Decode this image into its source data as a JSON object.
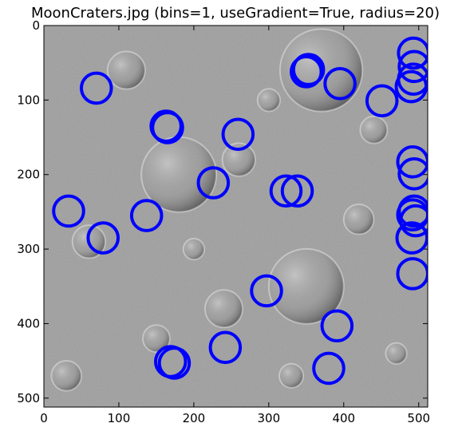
{
  "chart_data": {
    "type": "scatter",
    "title": "MoonCraters.jpg (bins=1, useGradient=True, radius=20)",
    "xlabel": "",
    "ylabel": "",
    "xlim": [
      0,
      512
    ],
    "ylim": [
      512,
      0
    ],
    "y_axis_inverted": true,
    "grid": false,
    "legend": "none",
    "background_image": "moon-surface-craters",
    "marker": "circle-outline",
    "marker_color": "#0000ff",
    "marker_radius": 20,
    "x_ticks": [
      0,
      100,
      200,
      300,
      400,
      500
    ],
    "y_ticks": [
      0,
      100,
      200,
      300,
      400,
      500
    ],
    "x_tick_labels": [
      "0",
      "100",
      "200",
      "300",
      "400",
      "500"
    ],
    "y_tick_labels": [
      "0",
      "100",
      "200",
      "300",
      "400",
      "500"
    ],
    "points": [
      {
        "x": 70,
        "y": 84
      },
      {
        "x": 163,
        "y": 135
      },
      {
        "x": 165,
        "y": 137
      },
      {
        "x": 259,
        "y": 146
      },
      {
        "x": 353,
        "y": 59
      },
      {
        "x": 350,
        "y": 62
      },
      {
        "x": 395,
        "y": 78
      },
      {
        "x": 451,
        "y": 101
      },
      {
        "x": 493,
        "y": 37
      },
      {
        "x": 494,
        "y": 55
      },
      {
        "x": 493,
        "y": 72
      },
      {
        "x": 490,
        "y": 82
      },
      {
        "x": 492,
        "y": 183
      },
      {
        "x": 494,
        "y": 199
      },
      {
        "x": 494,
        "y": 249
      },
      {
        "x": 496,
        "y": 262
      },
      {
        "x": 492,
        "y": 254
      },
      {
        "x": 491,
        "y": 285
      },
      {
        "x": 492,
        "y": 333
      },
      {
        "x": 226,
        "y": 211
      },
      {
        "x": 323,
        "y": 222
      },
      {
        "x": 338,
        "y": 222
      },
      {
        "x": 33,
        "y": 249
      },
      {
        "x": 137,
        "y": 255
      },
      {
        "x": 79,
        "y": 285
      },
      {
        "x": 297,
        "y": 356
      },
      {
        "x": 391,
        "y": 403
      },
      {
        "x": 242,
        "y": 432
      },
      {
        "x": 169,
        "y": 451
      },
      {
        "x": 174,
        "y": 453
      },
      {
        "x": 380,
        "y": 460
      }
    ]
  }
}
